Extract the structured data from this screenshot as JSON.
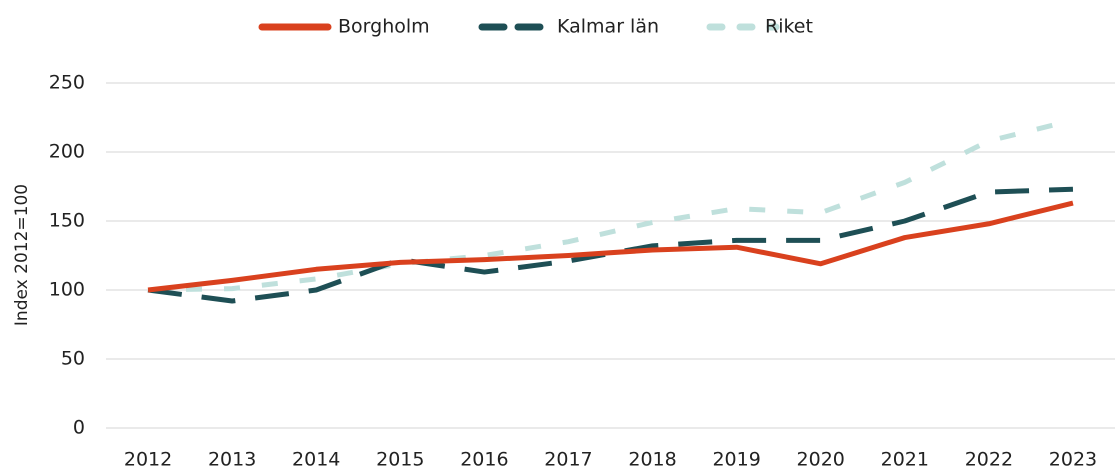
{
  "chart_data": {
    "type": "line",
    "y_label": "Index 2012=100",
    "categories": [
      "2012",
      "2013",
      "2014",
      "2015",
      "2016",
      "2017",
      "2018",
      "2019",
      "2020",
      "2021",
      "2022",
      "2023"
    ],
    "series": [
      {
        "name": "Borgholm",
        "color": "#d9411e",
        "dash": "solid",
        "values": [
          100,
          107,
          115,
          120,
          122,
          125,
          129,
          131,
          119,
          138,
          148,
          163
        ]
      },
      {
        "name": "Kalmar län",
        "color": "#1e4f55",
        "dash": "long",
        "values": [
          100,
          92,
          100,
          122,
          113,
          121,
          132,
          136,
          136,
          150,
          171,
          173
        ]
      },
      {
        "name": "Riket",
        "color": "#bfe0dc",
        "dash": "short",
        "values": [
          100,
          101,
          108,
          119,
          125,
          135,
          149,
          159,
          156,
          178,
          208,
          223
        ]
      }
    ],
    "ylim": [
      0,
      250
    ],
    "yticks": [
      0,
      50,
      100,
      150,
      200,
      250
    ],
    "grid": true,
    "legend": "top"
  }
}
